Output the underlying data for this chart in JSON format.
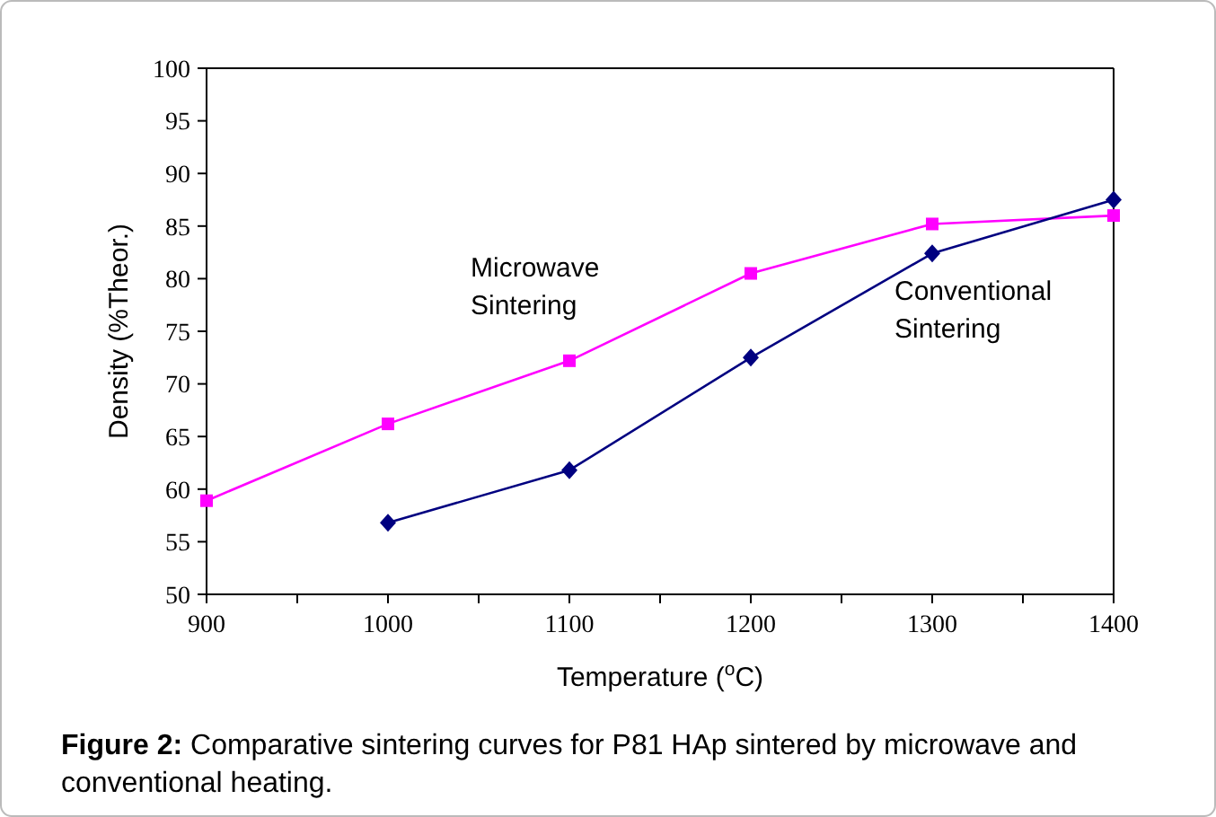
{
  "chart_data": {
    "type": "line",
    "xlabel": "Temperature ($^{o}$C)",
    "ylabel": "Density (%Theor.)",
    "x": [
      900,
      1000,
      1100,
      1200,
      1300,
      1400
    ],
    "series": [
      {
        "name": "Microwave Sintering",
        "color": "#ff00ff",
        "marker": "square",
        "values": [
          58.9,
          66.2,
          72.2,
          80.5,
          85.2,
          86.0
        ]
      },
      {
        "name": "Conventional Sintering",
        "color": "#000080",
        "marker": "diamond",
        "values": [
          null,
          56.8,
          61.8,
          72.5,
          82.4,
          87.5
        ]
      }
    ],
    "xlim": [
      900,
      1400
    ],
    "xticks": [
      900,
      1000,
      1100,
      1200,
      1300,
      1400
    ],
    "ylim": [
      50,
      100
    ],
    "yticks": [
      50,
      55,
      60,
      65,
      70,
      75,
      80,
      85,
      90,
      95,
      100
    ],
    "grid": false,
    "annotations": [
      "Figure 2: Comparative sintering curves for P81 HAp sintered by microwave and conventional heating."
    ]
  }
}
